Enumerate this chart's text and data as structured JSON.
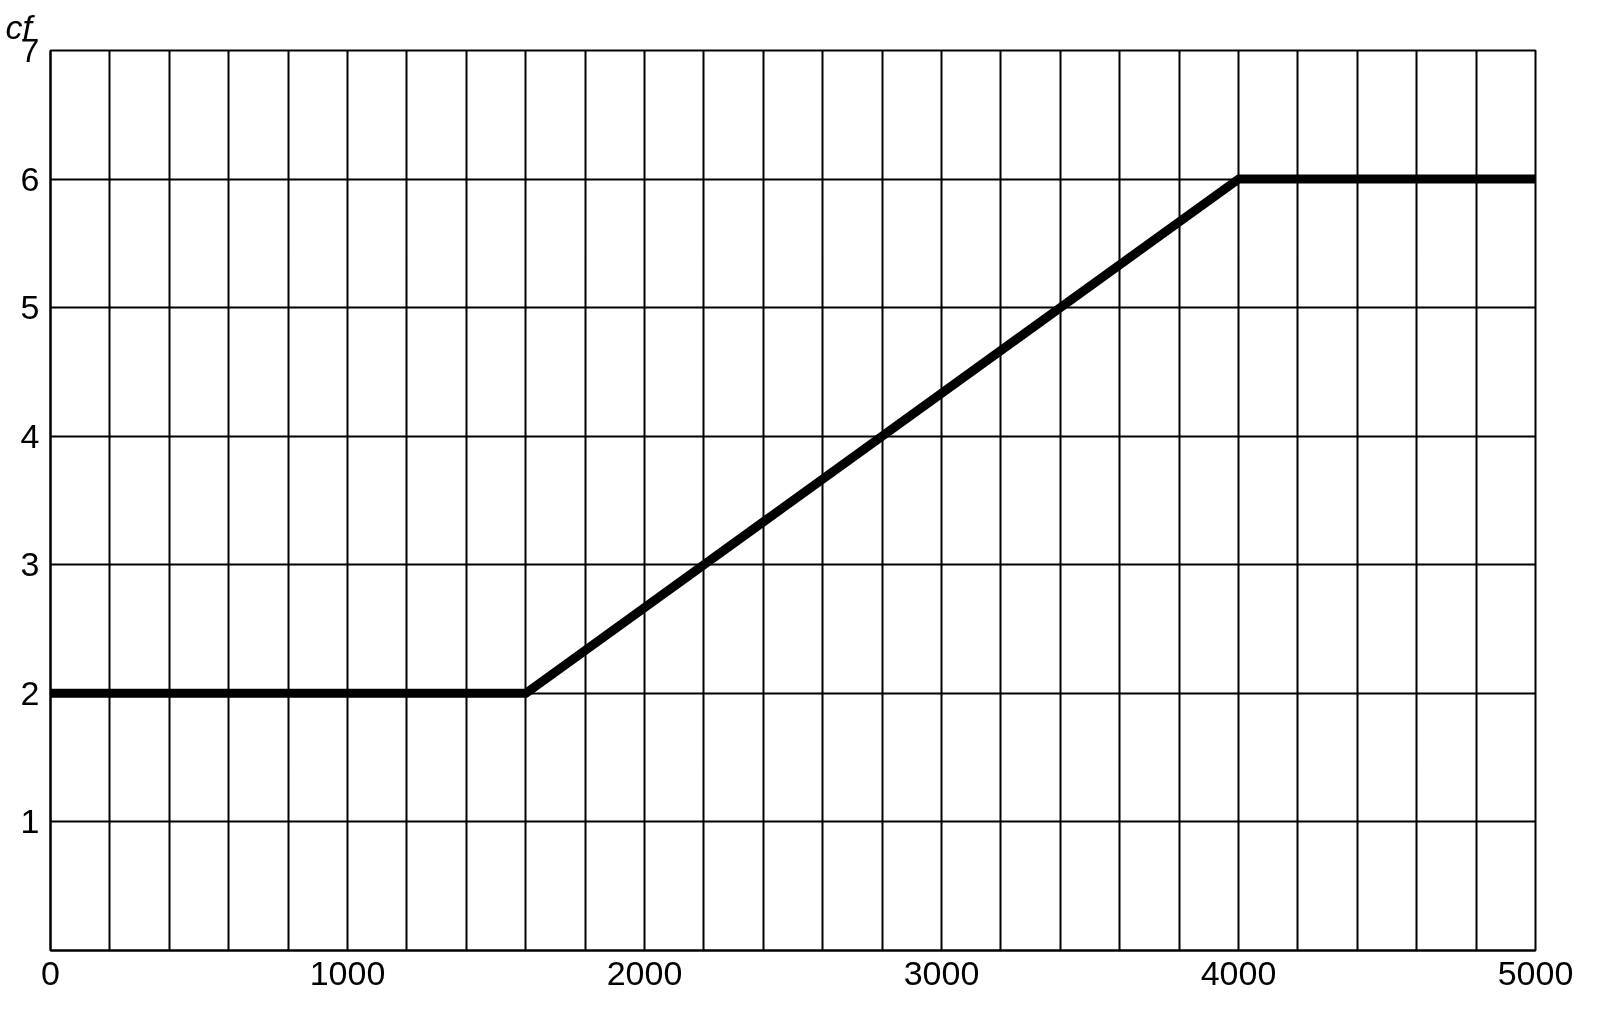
{
  "chart_data": {
    "type": "line",
    "ylabel": "cf",
    "x": [
      0,
      1600,
      4000,
      5000
    ],
    "series": [
      {
        "color": "#000000",
        "values": [
          2,
          2,
          6,
          6
        ]
      }
    ],
    "xlim": [
      0,
      5000
    ],
    "ylim": [
      0,
      7
    ],
    "xticks": [
      0,
      {
        "value": 200,
        "label": null
      },
      {
        "value": 400,
        "label": null
      },
      {
        "value": 600,
        "label": null
      },
      {
        "value": 800,
        "label": null
      },
      1000,
      {
        "value": 1200,
        "label": null
      },
      {
        "value": 1400,
        "label": null
      },
      {
        "value": 1600,
        "label": null
      },
      {
        "value": 1800,
        "label": null
      },
      2000,
      {
        "value": 2200,
        "label": null
      },
      {
        "value": 2400,
        "label": null
      },
      {
        "value": 2600,
        "label": null
      },
      {
        "value": 2800,
        "label": null
      },
      3000,
      {
        "value": 3200,
        "label": null
      },
      {
        "value": 3400,
        "label": null
      },
      {
        "value": 3600,
        "label": null
      },
      {
        "value": 3800,
        "label": null
      },
      4000,
      {
        "value": 4200,
        "label": null
      },
      {
        "value": 4400,
        "label": null
      },
      {
        "value": 4600,
        "label": null
      },
      {
        "value": 4800,
        "label": null
      },
      5000
    ],
    "yticks": [
      1,
      2,
      3,
      4,
      5,
      6,
      7
    ],
    "grid": true,
    "marker": "none",
    "line_style": "solid"
  }
}
